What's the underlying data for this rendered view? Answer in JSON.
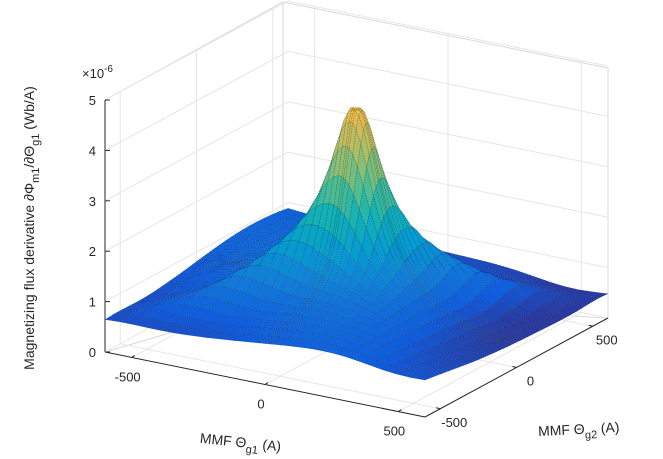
{
  "chart_data": {
    "type": "surface",
    "x": {
      "label_prefix": "MMF Θ",
      "label_sub": "g1",
      "label_suffix": " (A)",
      "ticks": [
        "-500",
        "0",
        "500"
      ],
      "range": [
        -600,
        600
      ]
    },
    "y": {
      "label_prefix": "MMF Θ",
      "label_sub": "g2",
      "label_suffix": " (A)",
      "ticks": [
        "-500",
        "0",
        "500"
      ],
      "range": [
        -600,
        600
      ]
    },
    "z": {
      "label_prefix": "Magnetizing flux derivative ∂Φ",
      "label_sub1": "m1",
      "label_mid": "/∂Θ",
      "label_sub2": "g1",
      "label_suffix": " (Wb/A)",
      "exponent_base": "×10",
      "exponent_power": "-6",
      "ticks": [
        "0",
        "1",
        "2",
        "3",
        "4",
        "5"
      ],
      "range": [
        0,
        5
      ]
    },
    "peak": {
      "x": 0,
      "y": 0,
      "z": 5.05
    },
    "grid": true,
    "colormap": "parula",
    "mesh_color": "#000000"
  }
}
